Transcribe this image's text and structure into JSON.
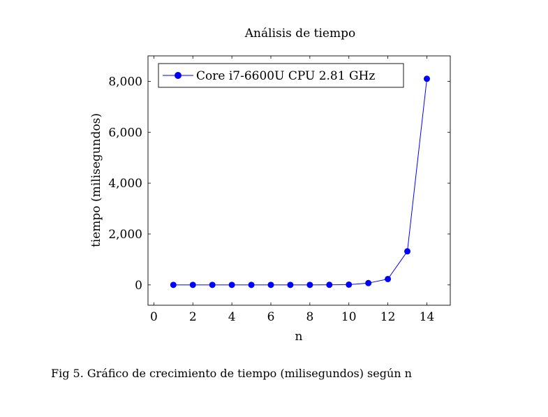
{
  "figure": {
    "caption": "Fig 5. Gráfico de crecimiento de tiempo (milisegundos) según n"
  },
  "colors": {
    "series": "#0000ff",
    "axis": "#000000"
  },
  "chart_data": {
    "type": "line",
    "title": "Análisis de tiempo",
    "xlabel": "n",
    "ylabel": "tiempo (milisegundos)",
    "xlim": [
      -0.3,
      15.2
    ],
    "ylim": [
      -800,
      9000
    ],
    "xticks": [
      0,
      2,
      4,
      6,
      8,
      10,
      12,
      14
    ],
    "xtick_labels": [
      "0",
      "2",
      "4",
      "6",
      "8",
      "10",
      "12",
      "14"
    ],
    "yticks": [
      0,
      2000,
      4000,
      6000,
      8000
    ],
    "ytick_labels": [
      "0",
      "2,000",
      "4,000",
      "6,000",
      "8,000"
    ],
    "grid": false,
    "legend_position": "top-left",
    "series": [
      {
        "name": "Core i7-6600U CPU 2.81 GHz",
        "x": [
          1,
          2,
          3,
          4,
          5,
          6,
          7,
          8,
          9,
          10,
          11,
          12,
          13,
          14
        ],
        "values": [
          0,
          0,
          0,
          0,
          0,
          0,
          0,
          1,
          3,
          10,
          70,
          230,
          1320,
          8100
        ]
      }
    ]
  }
}
